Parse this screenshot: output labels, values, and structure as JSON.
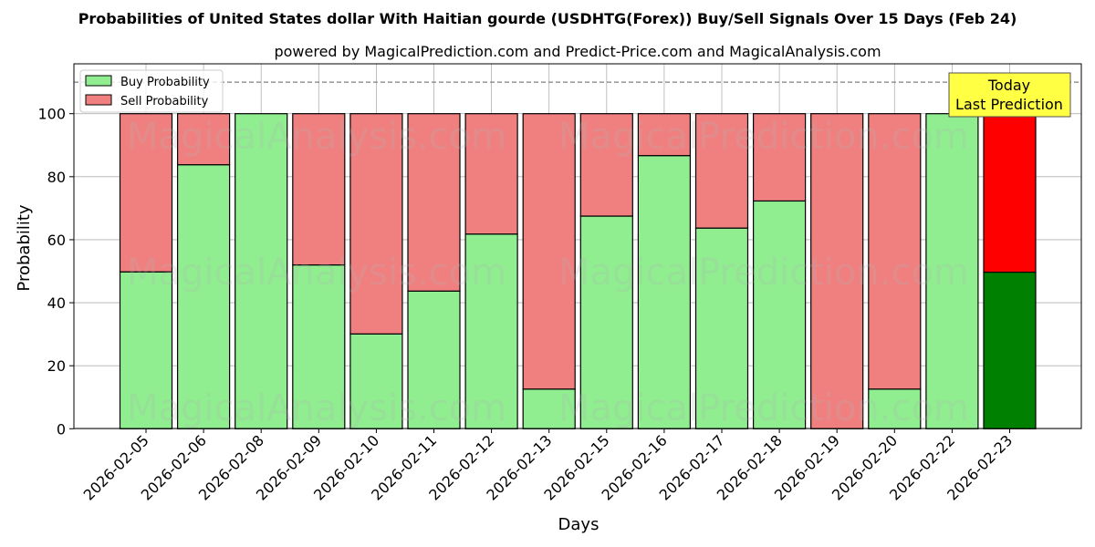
{
  "chart_data": {
    "type": "bar",
    "stacked": true,
    "title": "Probabilities of United States dollar With Haitian gourde (USDHTG(Forex)) Buy/Sell Signals Over 15 Days (Feb 24)",
    "subtitle": "powered by MagicalPrediction.com and Predict-Price.com and MagicalAnalysis.com",
    "xlabel": "Days",
    "ylabel": "Probability",
    "ylim": [
      0,
      115
    ],
    "yticks": [
      0,
      20,
      40,
      60,
      80,
      100
    ],
    "grid": true,
    "legend_position": "upper left",
    "reference_line": {
      "y": 110,
      "style": "dashed",
      "color": "#808080"
    },
    "categories": [
      "2026-02-05",
      "2026-02-06",
      "2026-02-08",
      "2026-02-09",
      "2026-02-10",
      "2026-02-11",
      "2026-02-12",
      "2026-02-13",
      "2026-02-15",
      "2026-02-16",
      "2026-02-17",
      "2026-02-18",
      "2026-02-19",
      "2026-02-20",
      "2026-02-22",
      "2026-02-23"
    ],
    "series": [
      {
        "name": "Buy Probability",
        "color": "#90ee90",
        "values": [
          49.8,
          83.8,
          100,
          52.0,
          30.1,
          43.7,
          61.8,
          12.6,
          67.5,
          86.7,
          63.7,
          72.3,
          0,
          12.6,
          100,
          49.7
        ]
      },
      {
        "name": "Sell Probability",
        "color": "#f08080",
        "values": [
          50.2,
          16.2,
          0,
          48.0,
          69.9,
          56.3,
          38.2,
          87.4,
          32.5,
          13.3,
          36.3,
          27.7,
          100,
          87.4,
          0,
          50.3
        ]
      }
    ],
    "highlight": {
      "index": 15,
      "buy_color": "#008000",
      "sell_color": "#ff0000"
    },
    "annotation": {
      "line1": "Today",
      "line2": "Last Prediction",
      "background": "#ffff44"
    },
    "watermarks": [
      "MagicalAnalysis.com",
      "MagicalPrediction.com"
    ]
  }
}
